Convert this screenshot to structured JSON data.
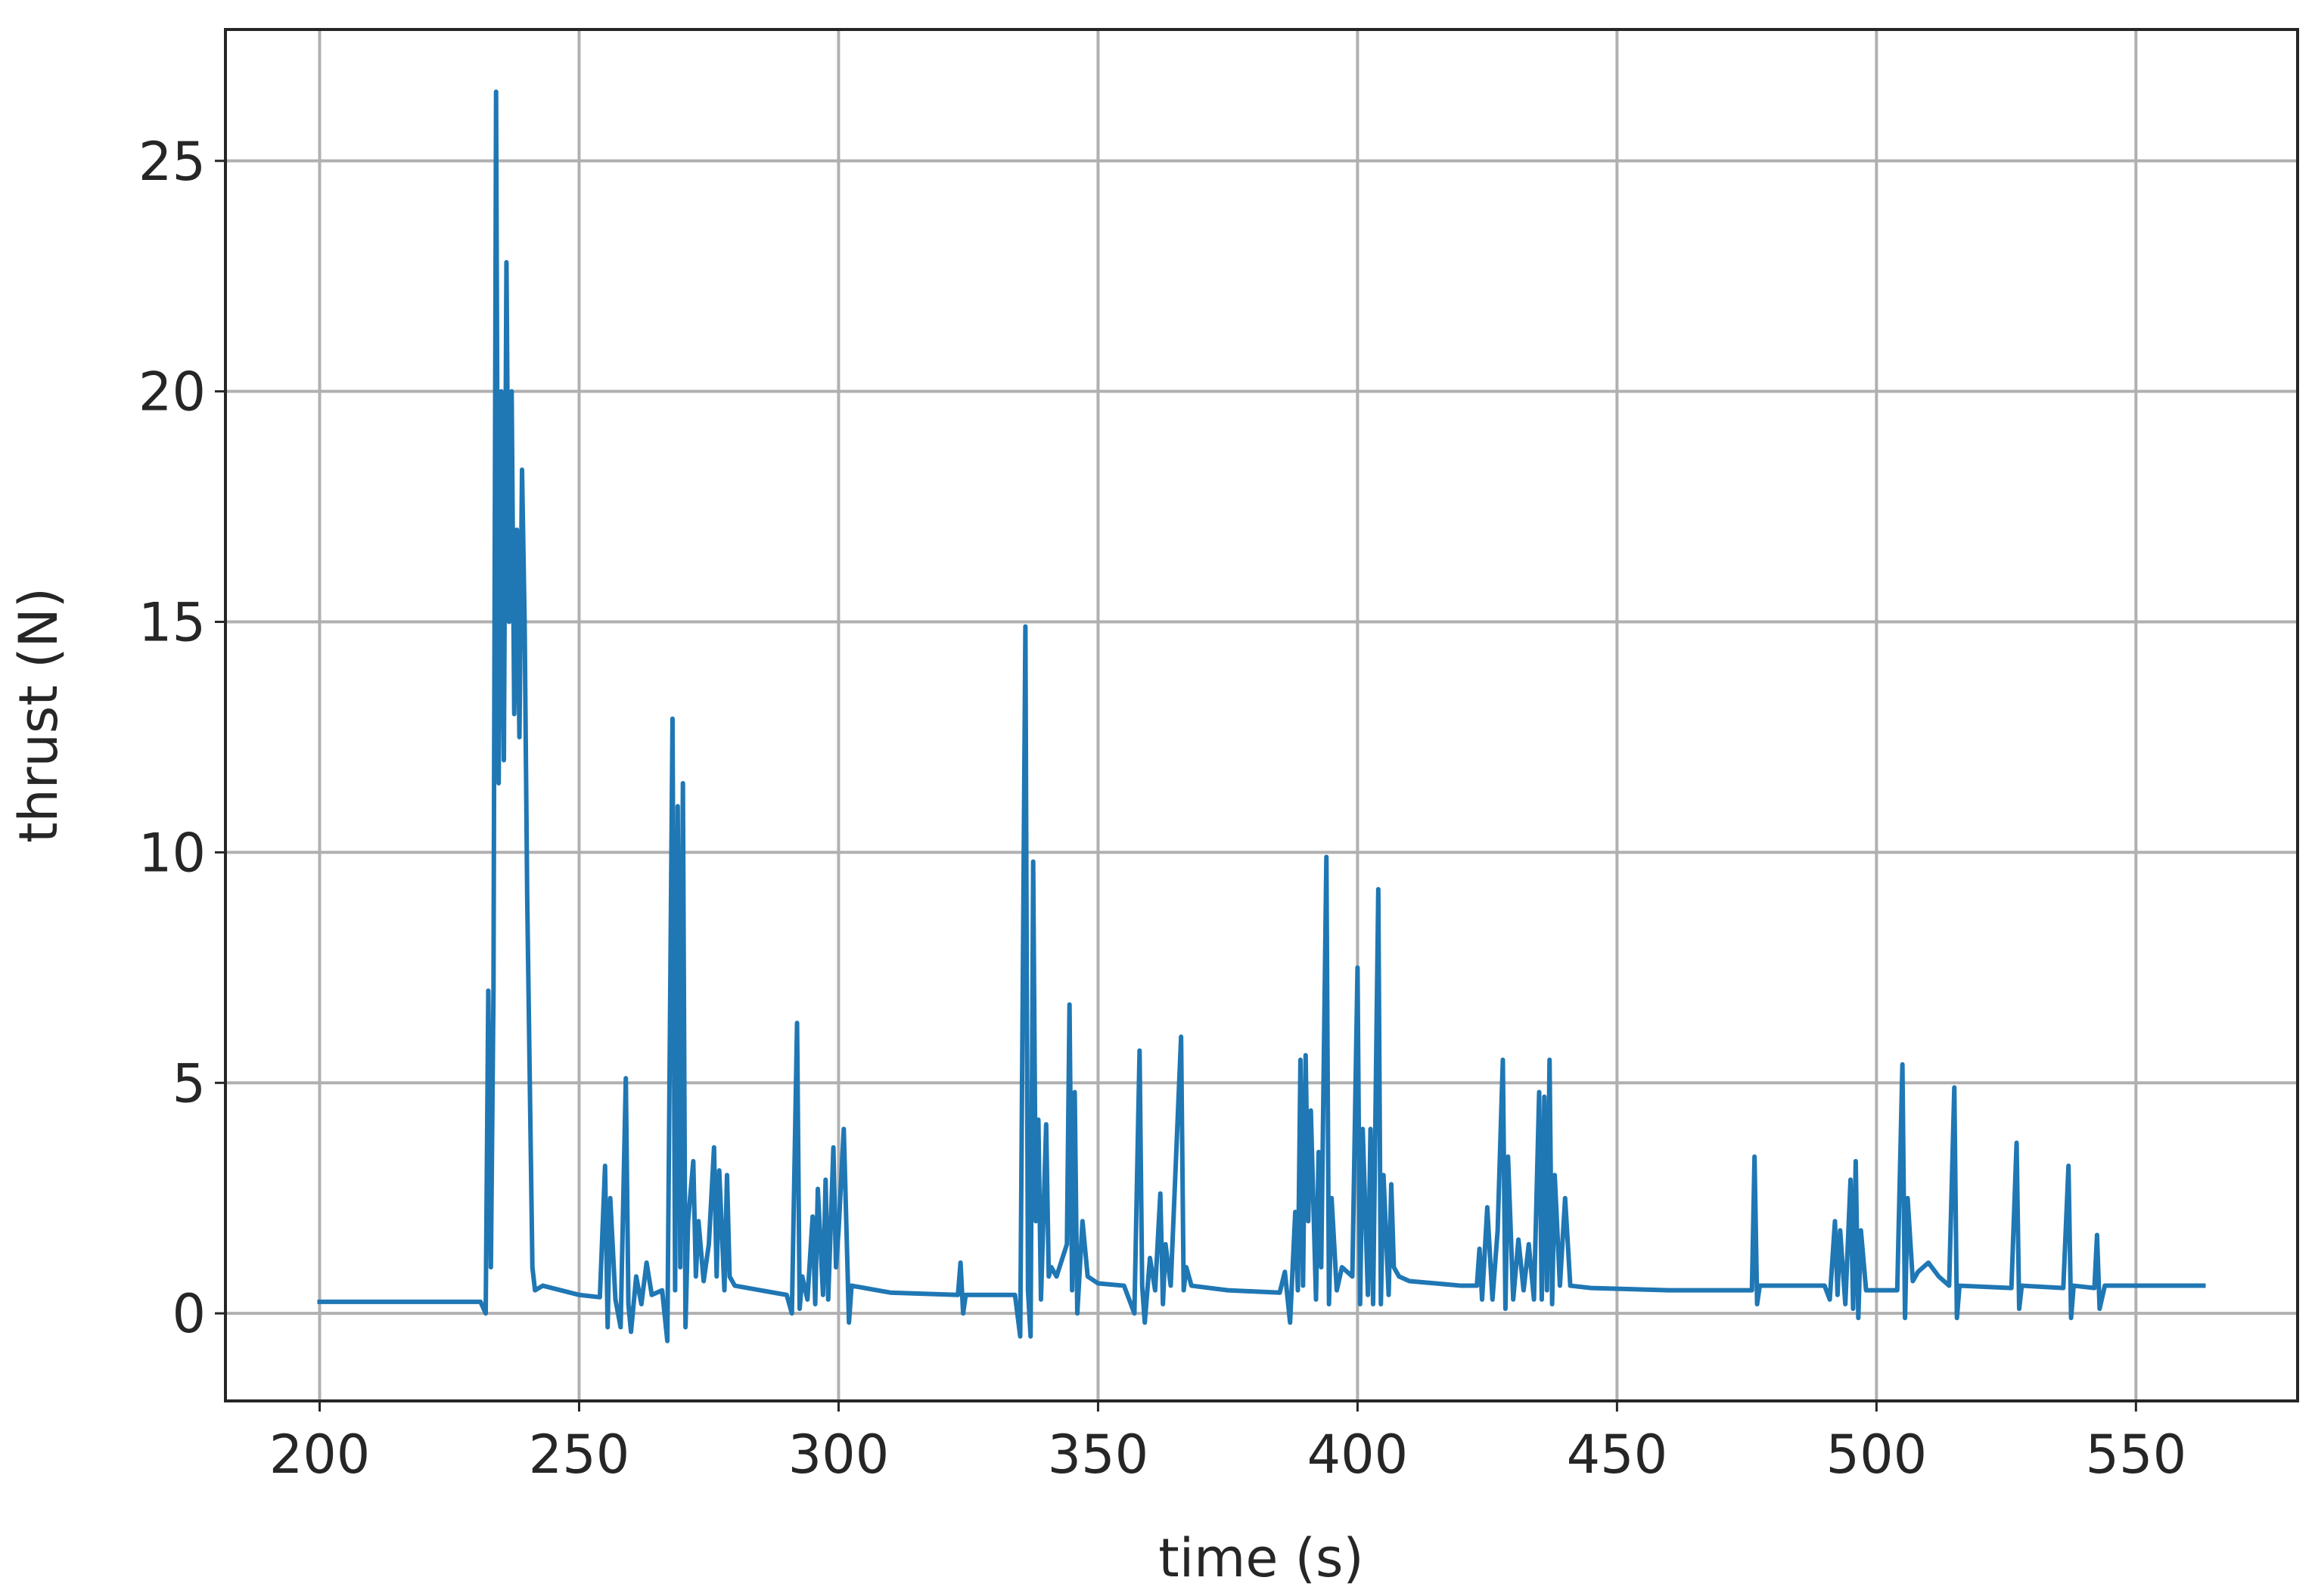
{
  "chart_data": {
    "type": "line",
    "xlabel": "time (s)",
    "ylabel": "thrust (N)",
    "color": "#1f77b4",
    "grid": true,
    "xlim": [
      181.85,
      581.15
    ],
    "ylim": [
      -1.9,
      27.85
    ],
    "xticks": [
      200,
      250,
      300,
      350,
      400,
      450,
      500,
      550
    ],
    "yticks": [
      0,
      5,
      10,
      15,
      20,
      25
    ],
    "x": [
      200,
      231,
      232,
      232.5,
      233,
      233.5,
      234,
      234.5,
      235,
      235.5,
      236,
      236.5,
      237,
      237.5,
      238,
      238.5,
      239,
      239.5,
      240,
      241,
      241.5,
      243,
      250,
      254,
      255,
      255.5,
      256,
      257,
      258,
      259,
      259.5,
      260,
      261,
      262,
      263,
      264,
      266,
      267,
      268,
      268.5,
      269,
      269.5,
      270,
      270.5,
      271,
      272,
      272.5,
      273,
      274,
      275,
      276,
      276.5,
      277,
      278,
      278.5,
      279,
      280,
      285,
      290,
      291,
      292,
      292.5,
      293,
      294,
      295,
      295.5,
      296,
      297,
      297.5,
      298,
      299,
      299.5,
      300,
      301,
      302,
      302.5,
      310,
      323,
      323.5,
      324,
      324.5,
      334,
      335,
      336,
      336.5,
      337,
      337.5,
      338,
      338.5,
      339,
      340,
      340.5,
      341,
      342,
      344,
      344.5,
      345,
      345.5,
      346,
      347,
      348,
      350,
      355,
      357,
      358,
      358.5,
      359,
      360,
      361,
      362,
      362.5,
      363,
      364,
      366,
      366.5,
      367,
      368,
      375,
      385,
      386,
      387,
      388,
      388.5,
      389,
      389.5,
      390,
      390.5,
      391,
      392,
      392.5,
      393,
      394,
      394.5,
      395,
      396,
      397,
      399,
      400,
      400.5,
      401,
      402,
      402.5,
      403,
      404,
      404.5,
      405,
      406,
      406.5,
      407,
      408,
      410,
      415,
      420,
      423,
      423.5,
      424,
      425,
      426,
      427,
      428,
      428.5,
      429,
      430,
      431,
      432,
      433,
      434,
      435,
      435.5,
      436,
      436.5,
      437,
      437.5,
      438,
      439,
      440,
      441,
      445,
      460,
      476,
      476.5,
      477,
      477.5,
      490,
      491,
      492,
      492.5,
      493,
      494,
      495,
      495.5,
      496,
      496.5,
      497,
      498,
      504,
      505,
      505.5,
      506,
      507,
      508,
      510,
      512,
      514,
      515,
      515.5,
      516,
      526,
      527,
      527.5,
      528,
      536,
      537,
      537.5,
      538,
      542,
      542.5,
      543,
      544,
      563
    ],
    "values": [
      0.25,
      0.25,
      0.0,
      7.0,
      1,
      7,
      26.5,
      11.5,
      20,
      12,
      22.8,
      15,
      20,
      13,
      17,
      12.5,
      18.3,
      15,
      9,
      1,
      0.5,
      0.6,
      0.4,
      0.35,
      3.2,
      -0.3,
      2.5,
      0.3,
      -0.3,
      5.1,
      0.2,
      -0.4,
      0.8,
      0.2,
      1.1,
      0.4,
      0.5,
      -0.6,
      12.9,
      0.5,
      11,
      1,
      11.5,
      -0.3,
      2,
      3.3,
      0.8,
      2,
      0.7,
      1.5,
      3.6,
      0.8,
      3.1,
      0.5,
      3,
      0.8,
      0.6,
      0.5,
      0.4,
      0.0,
      6.3,
      0.1,
      0.8,
      0.3,
      2.1,
      0.2,
      2.7,
      0.4,
      2.9,
      0.3,
      3.6,
      1,
      1.8,
      4.0,
      -0.2,
      0.6,
      0.45,
      0.4,
      1.1,
      0.0,
      0.4,
      0.4,
      -0.5,
      14.9,
      0.5,
      -0.5,
      9.8,
      2,
      4.2,
      0.3,
      4.1,
      0.8,
      1,
      0.8,
      1.5,
      6.7,
      0.5,
      4.8,
      0.0,
      2,
      0.8,
      0.65,
      0.6,
      0.0,
      5.7,
      0.6,
      -0.2,
      1.2,
      0.5,
      2.6,
      0.2,
      1.5,
      0.6,
      6.0,
      0.5,
      1,
      0.6,
      0.5,
      0.45,
      0.9,
      -0.2,
      2.2,
      0.5,
      5.5,
      0.6,
      5.6,
      2,
      4.4,
      0.3,
      3.5,
      1,
      9.9,
      0.2,
      2.5,
      0.5,
      1,
      0.8,
      7.5,
      0.2,
      4,
      0.4,
      4,
      0.2,
      9.2,
      0.2,
      3,
      0.4,
      2.8,
      1,
      0.8,
      0.7,
      0.65,
      0.6,
      0.6,
      1.4,
      0.3,
      2.3,
      0.3,
      1.8,
      5.5,
      0.1,
      3.4,
      0.3,
      1.6,
      0.5,
      1.5,
      0.3,
      4.8,
      0.3,
      4.7,
      0.5,
      5.5,
      0.2,
      3,
      0.6,
      2.5,
      0.6,
      0.55,
      0.5,
      0.5,
      3.4,
      0.2,
      0.6,
      0.6,
      0.3,
      2,
      0.4,
      1.8,
      0.2,
      2.9,
      0.1,
      3.3,
      -0.1,
      1.8,
      0.5,
      0.5,
      5.4,
      -0.1,
      2.5,
      0.7,
      0.9,
      1.1,
      0.8,
      0.6,
      4.9,
      -0.1,
      0.6,
      0.55,
      3.7,
      0.1,
      0.6,
      0.55,
      3.2,
      -0.1,
      0.6,
      0.55,
      1.7,
      0.1,
      0.6,
      0.6
    ]
  }
}
